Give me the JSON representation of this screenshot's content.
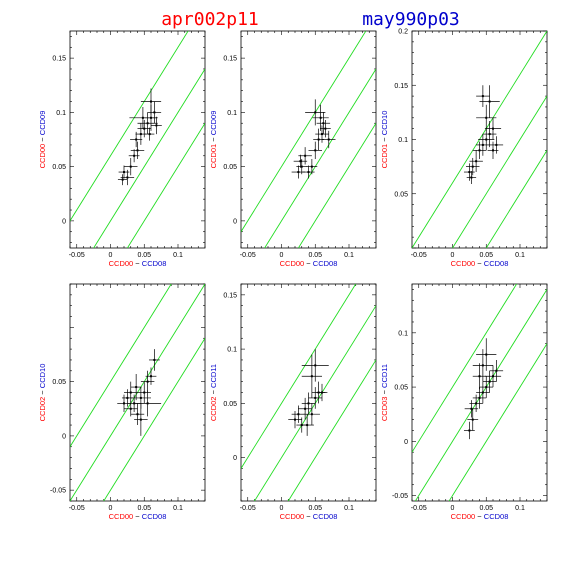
{
  "header": {
    "left_title": "apr002p11",
    "left_color": "#ff0000",
    "right_title": "may990p03",
    "right_color": "#0000cc"
  },
  "colors": {
    "red": "#ff0000",
    "blue": "#0000cc",
    "green": "#22dd22",
    "points": "#000000"
  },
  "chart_data": [
    {
      "type": "scatter",
      "xlabel": {
        "first": "CCD00",
        "sep": " − ",
        "second": "CCD08"
      },
      "ylabel": {
        "first": "CCD00",
        "sep": " − ",
        "second": "CCD09"
      },
      "xlim": [
        -0.06,
        0.14
      ],
      "ylim": [
        -0.025,
        0.175
      ],
      "xticks": [
        "-0.05",
        "0",
        "0.05",
        "0.1"
      ],
      "yticks": [
        "0",
        "0.05",
        "0.1",
        "0.15"
      ],
      "guide_lines": {
        "slope": 1,
        "intercepts": [
          0.06,
          0.0,
          -0.05
        ]
      },
      "points": [
        {
          "x": 0.02,
          "y": 0.045,
          "ex": 0.008,
          "ey": 0.006
        },
        {
          "x": 0.025,
          "y": 0.04,
          "ex": 0.01,
          "ey": 0.007
        },
        {
          "x": 0.018,
          "y": 0.038,
          "ex": 0.007,
          "ey": 0.005
        },
        {
          "x": 0.03,
          "y": 0.05,
          "ex": 0.01,
          "ey": 0.008
        },
        {
          "x": 0.035,
          "y": 0.06,
          "ex": 0.008,
          "ey": 0.006
        },
        {
          "x": 0.04,
          "y": 0.065,
          "ex": 0.01,
          "ey": 0.008
        },
        {
          "x": 0.038,
          "y": 0.075,
          "ex": 0.009,
          "ey": 0.007
        },
        {
          "x": 0.045,
          "y": 0.08,
          "ex": 0.008,
          "ey": 0.01
        },
        {
          "x": 0.05,
          "y": 0.085,
          "ex": 0.01,
          "ey": 0.008
        },
        {
          "x": 0.055,
          "y": 0.09,
          "ex": 0.015,
          "ey": 0.01
        },
        {
          "x": 0.06,
          "y": 0.095,
          "ex": 0.01,
          "ey": 0.012
        },
        {
          "x": 0.048,
          "y": 0.095,
          "ex": 0.02,
          "ey": 0.01
        },
        {
          "x": 0.065,
          "y": 0.1,
          "ex": 0.01,
          "ey": 0.01
        },
        {
          "x": 0.06,
          "y": 0.11,
          "ex": 0.015,
          "ey": 0.012
        },
        {
          "x": 0.068,
          "y": 0.088,
          "ex": 0.008,
          "ey": 0.008
        },
        {
          "x": 0.058,
          "y": 0.08,
          "ex": 0.007,
          "ey": 0.006
        }
      ]
    },
    {
      "type": "scatter",
      "xlabel": {
        "first": "CCD00",
        "sep": " − ",
        "second": "CCD08"
      },
      "ylabel": {
        "first": "CCD01",
        "sep": " − ",
        "second": "CCD09"
      },
      "xlim": [
        -0.06,
        0.14
      ],
      "ylim": [
        -0.025,
        0.175
      ],
      "xticks": [
        "-0.05",
        "0",
        "0.05",
        "0.1"
      ],
      "yticks": [
        "0",
        "0.05",
        "0.1",
        "0.15"
      ],
      "guide_lines": {
        "slope": 1,
        "intercepts": [
          0.05,
          0.0,
          -0.05
        ]
      },
      "points": [
        {
          "x": 0.025,
          "y": 0.045,
          "ex": 0.01,
          "ey": 0.006
        },
        {
          "x": 0.03,
          "y": 0.05,
          "ex": 0.008,
          "ey": 0.007
        },
        {
          "x": 0.028,
          "y": 0.055,
          "ex": 0.01,
          "ey": 0.006
        },
        {
          "x": 0.035,
          "y": 0.06,
          "ex": 0.01,
          "ey": 0.008
        },
        {
          "x": 0.04,
          "y": 0.045,
          "ex": 0.009,
          "ey": 0.006
        },
        {
          "x": 0.045,
          "y": 0.05,
          "ex": 0.008,
          "ey": 0.007
        },
        {
          "x": 0.05,
          "y": 0.065,
          "ex": 0.01,
          "ey": 0.008
        },
        {
          "x": 0.055,
          "y": 0.075,
          "ex": 0.008,
          "ey": 0.01
        },
        {
          "x": 0.06,
          "y": 0.08,
          "ex": 0.01,
          "ey": 0.008
        },
        {
          "x": 0.062,
          "y": 0.09,
          "ex": 0.01,
          "ey": 0.01
        },
        {
          "x": 0.058,
          "y": 0.095,
          "ex": 0.012,
          "ey": 0.012
        },
        {
          "x": 0.065,
          "y": 0.085,
          "ex": 0.008,
          "ey": 0.008
        },
        {
          "x": 0.05,
          "y": 0.1,
          "ex": 0.015,
          "ey": 0.012
        },
        {
          "x": 0.07,
          "y": 0.075,
          "ex": 0.01,
          "ey": 0.008
        }
      ]
    },
    {
      "type": "scatter",
      "xlabel": {
        "first": "CCD00",
        "sep": " − ",
        "second": "CCD08"
      },
      "ylabel": {
        "first": "CCD01",
        "sep": " − ",
        "second": "CCD10"
      },
      "xlim": [
        -0.06,
        0.14
      ],
      "ylim": [
        0.0,
        0.2
      ],
      "xticks": [
        "-0.05",
        "0",
        "0.05",
        "0.1"
      ],
      "yticks": [
        "0.05",
        "0.1",
        "0.15",
        "0.2"
      ],
      "guide_lines": {
        "slope": 1,
        "intercepts": [
          0.06,
          0.0,
          -0.05
        ]
      },
      "points": [
        {
          "x": 0.025,
          "y": 0.07,
          "ex": 0.008,
          "ey": 0.008
        },
        {
          "x": 0.03,
          "y": 0.075,
          "ex": 0.01,
          "ey": 0.008
        },
        {
          "x": 0.028,
          "y": 0.065,
          "ex": 0.007,
          "ey": 0.006
        },
        {
          "x": 0.035,
          "y": 0.08,
          "ex": 0.01,
          "ey": 0.01
        },
        {
          "x": 0.04,
          "y": 0.09,
          "ex": 0.01,
          "ey": 0.008
        },
        {
          "x": 0.045,
          "y": 0.095,
          "ex": 0.01,
          "ey": 0.01
        },
        {
          "x": 0.05,
          "y": 0.1,
          "ex": 0.012,
          "ey": 0.01
        },
        {
          "x": 0.055,
          "y": 0.105,
          "ex": 0.01,
          "ey": 0.012
        },
        {
          "x": 0.06,
          "y": 0.11,
          "ex": 0.012,
          "ey": 0.01
        },
        {
          "x": 0.05,
          "y": 0.12,
          "ex": 0.015,
          "ey": 0.012
        },
        {
          "x": 0.055,
          "y": 0.135,
          "ex": 0.015,
          "ey": 0.015
        },
        {
          "x": 0.045,
          "y": 0.14,
          "ex": 0.01,
          "ey": 0.01
        },
        {
          "x": 0.065,
          "y": 0.095,
          "ex": 0.01,
          "ey": 0.008
        },
        {
          "x": 0.06,
          "y": 0.09,
          "ex": 0.008,
          "ey": 0.008
        }
      ]
    },
    {
      "type": "scatter",
      "xlabel": {
        "first": "CCD00",
        "sep": " − ",
        "second": "CCD08"
      },
      "ylabel": {
        "first": "CCD02",
        "sep": " − ",
        "second": "CCD10"
      },
      "xlim": [
        -0.06,
        0.14
      ],
      "ylim": [
        -0.06,
        0.14
      ],
      "xticks": [
        "-0.05",
        "0",
        "0.05",
        "0.1"
      ],
      "yticks": [
        "-0.05",
        "0",
        "0.05"
      ],
      "guide_lines": {
        "slope": 1,
        "intercepts": [
          0.05,
          0.0,
          -0.05
        ]
      },
      "points": [
        {
          "x": 0.02,
          "y": 0.03,
          "ex": 0.01,
          "ey": 0.008
        },
        {
          "x": 0.025,
          "y": 0.035,
          "ex": 0.008,
          "ey": 0.008
        },
        {
          "x": 0.03,
          "y": 0.025,
          "ex": 0.01,
          "ey": 0.007
        },
        {
          "x": 0.035,
          "y": 0.03,
          "ex": 0.01,
          "ey": 0.008
        },
        {
          "x": 0.04,
          "y": 0.02,
          "ex": 0.01,
          "ey": 0.01
        },
        {
          "x": 0.045,
          "y": 0.035,
          "ex": 0.015,
          "ey": 0.01
        },
        {
          "x": 0.038,
          "y": 0.045,
          "ex": 0.008,
          "ey": 0.012
        },
        {
          "x": 0.05,
          "y": 0.04,
          "ex": 0.01,
          "ey": 0.01
        },
        {
          "x": 0.055,
          "y": 0.05,
          "ex": 0.01,
          "ey": 0.01
        },
        {
          "x": 0.06,
          "y": 0.055,
          "ex": 0.008,
          "ey": 0.008
        },
        {
          "x": 0.065,
          "y": 0.07,
          "ex": 0.008,
          "ey": 0.01
        },
        {
          "x": 0.045,
          "y": 0.015,
          "ex": 0.01,
          "ey": 0.015
        },
        {
          "x": 0.055,
          "y": 0.03,
          "ex": 0.02,
          "ey": 0.012
        },
        {
          "x": 0.03,
          "y": 0.04,
          "ex": 0.01,
          "ey": 0.01
        }
      ]
    },
    {
      "type": "scatter",
      "xlabel": {
        "first": "CCD00",
        "sep": " − ",
        "second": "CCD08"
      },
      "ylabel": {
        "first": "CCD02",
        "sep": " − ",
        "second": "CCD11"
      },
      "xlim": [
        -0.06,
        0.14
      ],
      "ylim": [
        -0.04,
        0.16
      ],
      "xticks": [
        "-0.05",
        "0",
        "0.05",
        "0.1"
      ],
      "yticks": [
        "0",
        "0.05",
        "0.1",
        "0.15"
      ],
      "guide_lines": {
        "slope": 1,
        "intercepts": [
          0.05,
          0.0,
          -0.05
        ]
      },
      "points": [
        {
          "x": 0.02,
          "y": 0.035,
          "ex": 0.01,
          "ey": 0.008
        },
        {
          "x": 0.025,
          "y": 0.04,
          "ex": 0.01,
          "ey": 0.008
        },
        {
          "x": 0.03,
          "y": 0.03,
          "ex": 0.008,
          "ey": 0.007
        },
        {
          "x": 0.035,
          "y": 0.045,
          "ex": 0.01,
          "ey": 0.01
        },
        {
          "x": 0.04,
          "y": 0.05,
          "ex": 0.01,
          "ey": 0.01
        },
        {
          "x": 0.045,
          "y": 0.04,
          "ex": 0.012,
          "ey": 0.01
        },
        {
          "x": 0.05,
          "y": 0.055,
          "ex": 0.01,
          "ey": 0.01
        },
        {
          "x": 0.055,
          "y": 0.06,
          "ex": 0.01,
          "ey": 0.01
        },
        {
          "x": 0.045,
          "y": 0.075,
          "ex": 0.015,
          "ey": 0.02
        },
        {
          "x": 0.05,
          "y": 0.085,
          "ex": 0.02,
          "ey": 0.015
        },
        {
          "x": 0.06,
          "y": 0.06,
          "ex": 0.008,
          "ey": 0.008
        },
        {
          "x": 0.038,
          "y": 0.03,
          "ex": 0.01,
          "ey": 0.01
        }
      ]
    },
    {
      "type": "scatter",
      "xlabel": {
        "first": "CCD00",
        "sep": " − ",
        "second": "CCD08"
      },
      "ylabel": {
        "first": "CCD03",
        "sep": " − ",
        "second": "CCD11"
      },
      "xlim": [
        -0.06,
        0.14
      ],
      "ylim": [
        -0.055,
        0.145
      ],
      "xticks": [
        "-0.05",
        "0",
        "0.05",
        "0.1"
      ],
      "yticks": [
        "-0.05",
        "0",
        "0.05",
        "0.1"
      ],
      "guide_lines": {
        "slope": 1,
        "intercepts": [
          0.05,
          0.0,
          -0.05
        ]
      },
      "points": [
        {
          "x": 0.025,
          "y": 0.01,
          "ex": 0.008,
          "ey": 0.008
        },
        {
          "x": 0.03,
          "y": 0.02,
          "ex": 0.008,
          "ey": 0.01
        },
        {
          "x": 0.028,
          "y": 0.03,
          "ex": 0.01,
          "ey": 0.008
        },
        {
          "x": 0.035,
          "y": 0.035,
          "ex": 0.01,
          "ey": 0.008
        },
        {
          "x": 0.04,
          "y": 0.04,
          "ex": 0.01,
          "ey": 0.01
        },
        {
          "x": 0.045,
          "y": 0.045,
          "ex": 0.01,
          "ey": 0.01
        },
        {
          "x": 0.05,
          "y": 0.05,
          "ex": 0.01,
          "ey": 0.01
        },
        {
          "x": 0.055,
          "y": 0.055,
          "ex": 0.01,
          "ey": 0.01
        },
        {
          "x": 0.06,
          "y": 0.06,
          "ex": 0.012,
          "ey": 0.01
        },
        {
          "x": 0.045,
          "y": 0.07,
          "ex": 0.015,
          "ey": 0.015
        },
        {
          "x": 0.05,
          "y": 0.08,
          "ex": 0.015,
          "ey": 0.015
        },
        {
          "x": 0.065,
          "y": 0.065,
          "ex": 0.01,
          "ey": 0.01
        },
        {
          "x": 0.04,
          "y": 0.06,
          "ex": 0.01,
          "ey": 0.012
        }
      ]
    }
  ]
}
